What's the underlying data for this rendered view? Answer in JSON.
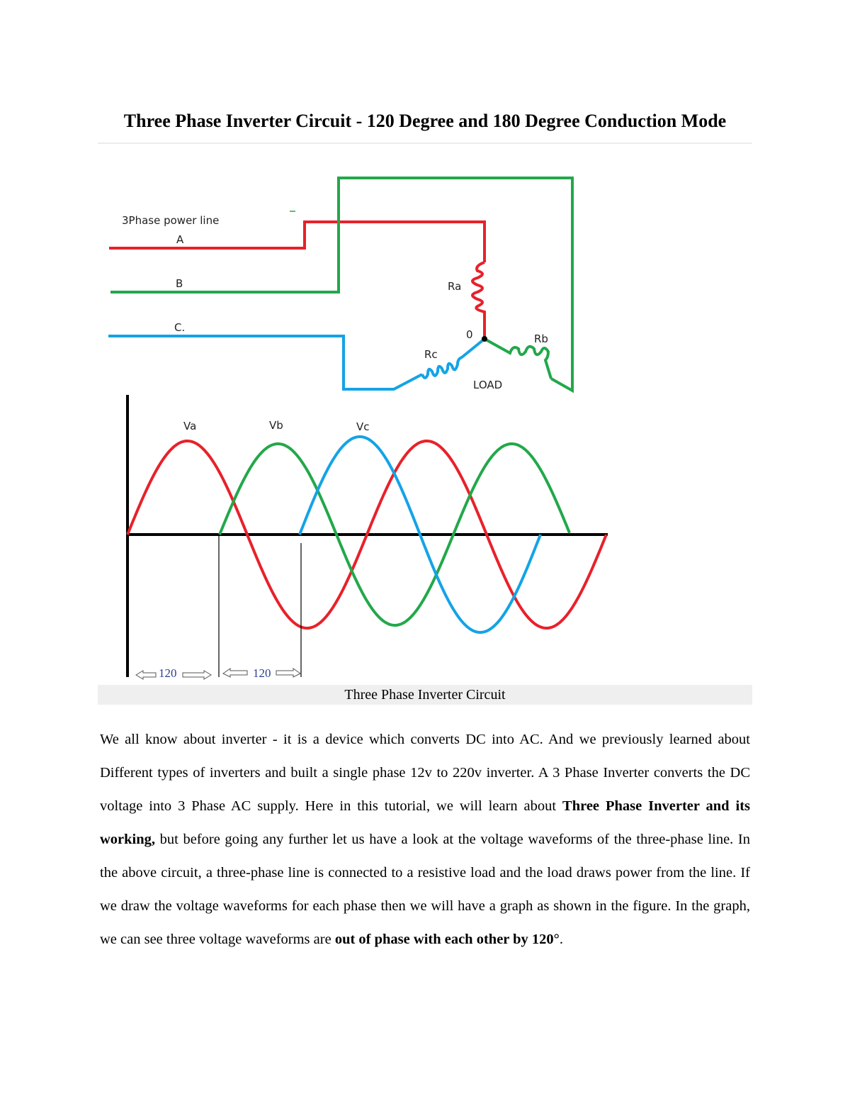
{
  "document": {
    "title": "Three Phase Inverter Circuit - 120 Degree and 180 Degree Conduction Mode",
    "figure": {
      "caption": "Three Phase Inverter Circuit",
      "circuit_labels": {
        "power_line": "3Phase power line",
        "line_a": "A",
        "line_b": "B",
        "line_c": "C.",
        "ra": "Ra",
        "rb": "Rb",
        "rc": "Rc",
        "neutral": "0",
        "load": "LOAD"
      },
      "waveform_labels": {
        "va": "Va",
        "vb": "Vb",
        "vc": "Vc",
        "spacing_1": "120",
        "spacing_2": "120"
      },
      "colors": {
        "phase_a": "#e8212a",
        "phase_b": "#22a84a",
        "phase_c": "#14a3e6"
      }
    },
    "paragraph": {
      "t1": "We all know about inverter - it is a device which converts DC into AC. And we previously learned about Different types of inverters and built a single phase 12v to 220v inverter.  A 3 Phase Inverter converts the DC voltage into 3 Phase AC supply. Here in this tutorial, we will learn about ",
      "b1": "Three Phase Inverter and its working,",
      "t2": " but before going any further let us have a look at the voltage waveforms of the three-phase line. In the above circuit, a three-phase line is connected to a resistive load and the load draws power from the line. If we draw the voltage waveforms for each phase then we will have a graph as shown in the figure. In the graph, we can see three voltage waveforms are ",
      "b2": "out of phase with each other by 120°",
      "t3": "."
    }
  }
}
